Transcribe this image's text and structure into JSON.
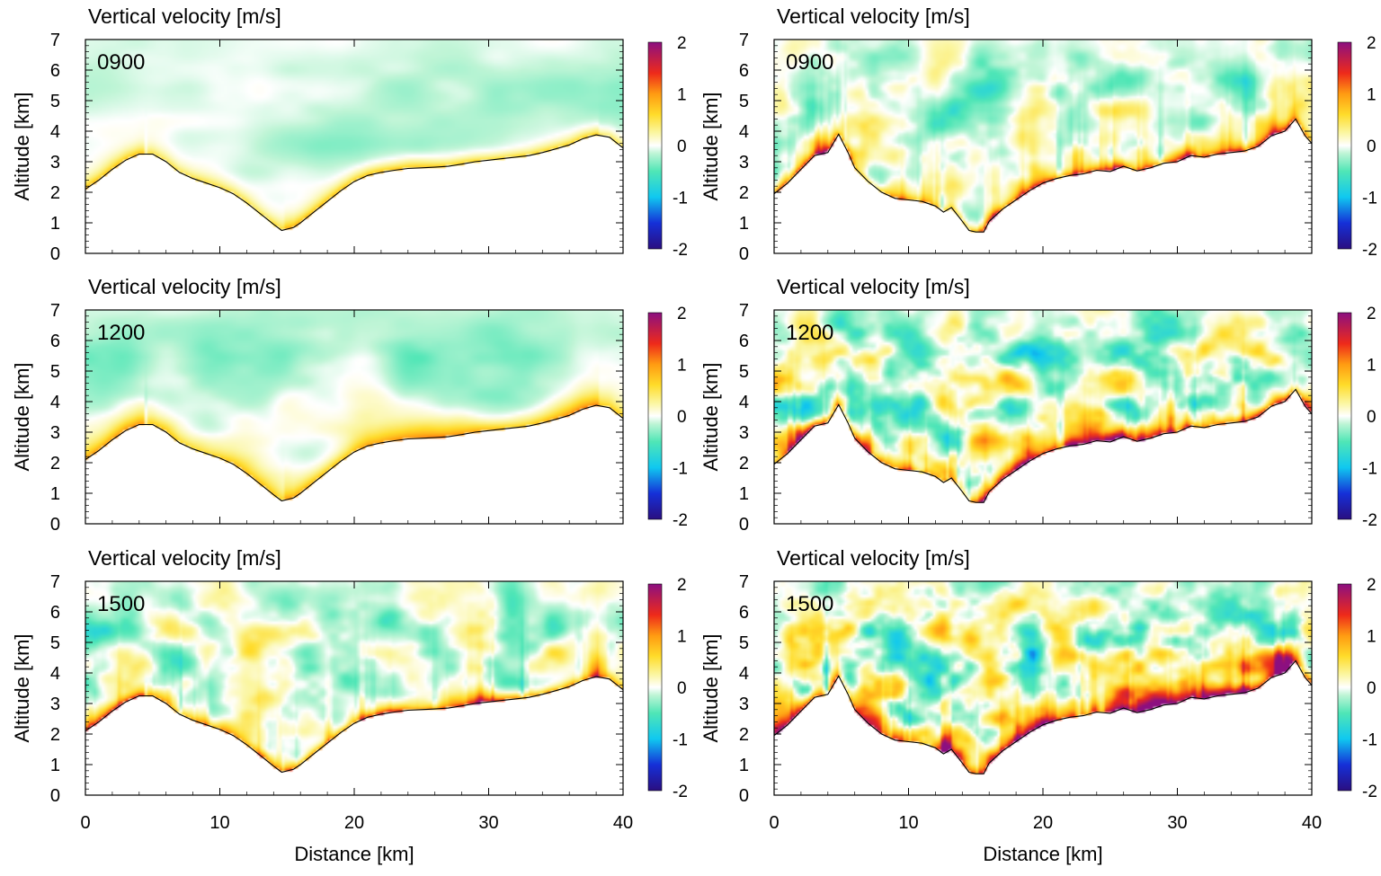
{
  "chart_data": {
    "type": "heatmap",
    "layout": "3 rows x 2 columns of vertical cross-section panels",
    "title": "Vertical velocity [m/s]",
    "xlabel": "Distance [km]",
    "ylabel": "Altitude [km]",
    "xlim": [
      0,
      40
    ],
    "ylim": [
      0,
      7
    ],
    "xticks": [
      "0",
      "10",
      "20",
      "30",
      "40"
    ],
    "yticks": [
      "0",
      "1",
      "2",
      "3",
      "4",
      "5",
      "6",
      "7"
    ],
    "colorbar": {
      "range": [
        -2,
        2
      ],
      "ticks": [
        "-2",
        "-1",
        "0",
        "1",
        "2"
      ],
      "stops": [
        {
          "value": -2.0,
          "color": "#2a0e80"
        },
        {
          "value": -1.5,
          "color": "#1530d8"
        },
        {
          "value": -1.0,
          "color": "#10c8f0"
        },
        {
          "value": -0.5,
          "color": "#4fe6b6"
        },
        {
          "value": -0.15,
          "color": "#bff5d6"
        },
        {
          "value": 0.0,
          "color": "#ffffff"
        },
        {
          "value": 0.25,
          "color": "#fbf6a0"
        },
        {
          "value": 0.6,
          "color": "#ffdc2a"
        },
        {
          "value": 1.0,
          "color": "#ff9b12"
        },
        {
          "value": 1.4,
          "color": "#ee2a1a"
        },
        {
          "value": 2.0,
          "color": "#8c0f80"
        }
      ]
    },
    "terrain": {
      "left_column": {
        "distance_km": [
          0,
          1,
          2,
          3,
          4,
          5,
          6,
          7,
          8,
          9,
          10,
          11,
          12,
          13,
          14,
          14.6,
          15.5,
          16,
          17,
          18,
          19,
          20,
          21,
          22,
          23,
          24,
          25,
          26,
          27,
          28,
          29,
          30,
          31,
          32,
          33,
          34,
          35,
          36,
          37,
          38,
          39,
          40
        ],
        "altitude_km": [
          2.1,
          2.4,
          2.75,
          3.05,
          3.25,
          3.25,
          3.0,
          2.65,
          2.45,
          2.3,
          2.15,
          1.95,
          1.65,
          1.3,
          0.95,
          0.75,
          0.85,
          1.0,
          1.35,
          1.7,
          2.05,
          2.35,
          2.55,
          2.65,
          2.72,
          2.78,
          2.8,
          2.82,
          2.85,
          2.92,
          3.0,
          3.05,
          3.1,
          3.15,
          3.2,
          3.3,
          3.42,
          3.55,
          3.75,
          3.88,
          3.8,
          3.45
        ]
      },
      "right_column": {
        "distance_km": [
          0,
          1,
          2,
          3,
          4,
          4.8,
          5.5,
          6,
          7,
          8,
          9,
          10,
          11,
          12,
          12.6,
          13.2,
          14,
          14.5,
          15,
          15.6,
          16,
          17,
          18,
          19,
          20,
          21,
          22,
          23,
          24,
          25,
          26,
          27,
          28,
          29,
          30,
          31,
          32,
          33,
          34,
          35,
          36,
          37,
          38,
          38.8,
          39.5,
          40
        ],
        "altitude_km": [
          1.95,
          2.3,
          2.75,
          3.2,
          3.3,
          3.9,
          3.3,
          2.8,
          2.35,
          2.0,
          1.8,
          1.75,
          1.7,
          1.55,
          1.35,
          1.5,
          1.05,
          0.75,
          0.7,
          0.7,
          1.05,
          1.45,
          1.75,
          2.05,
          2.3,
          2.45,
          2.55,
          2.6,
          2.72,
          2.68,
          2.85,
          2.7,
          2.8,
          2.95,
          3.0,
          3.2,
          3.15,
          3.25,
          3.3,
          3.35,
          3.5,
          3.85,
          4.0,
          4.4,
          3.85,
          3.6
        ]
      }
    },
    "panels": [
      {
        "row": 1,
        "column": "left",
        "time": "0900",
        "pattern": "weak"
      },
      {
        "row": 1,
        "column": "right",
        "time": "0900",
        "pattern": "moderate"
      },
      {
        "row": 2,
        "column": "left",
        "time": "1200",
        "pattern": "weak-moderate"
      },
      {
        "row": 2,
        "column": "right",
        "time": "1200",
        "pattern": "strong"
      },
      {
        "row": 3,
        "column": "left",
        "time": "1500",
        "pattern": "moderate"
      },
      {
        "row": 3,
        "column": "right",
        "time": "1500",
        "pattern": "strongest"
      }
    ]
  }
}
